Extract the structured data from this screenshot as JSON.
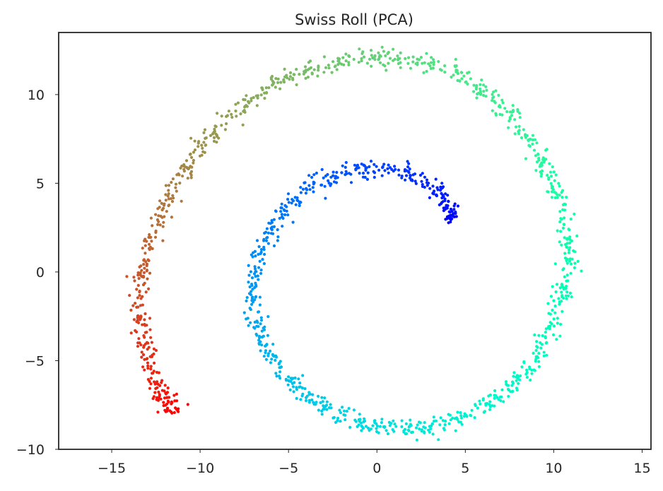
{
  "chart_data": {
    "type": "scatter",
    "title": "Swiss Roll (PCA)",
    "xlabel": "",
    "ylabel": "",
    "xlim": [
      -18,
      15.5
    ],
    "ylim": [
      -10,
      13.5
    ],
    "xticks": [
      -15,
      -10,
      -5,
      0,
      5,
      10,
      15
    ],
    "yticks": [
      -10,
      -5,
      0,
      5,
      10
    ],
    "xtick_labels": [
      "−15",
      "−10",
      "−5",
      "0",
      "5",
      "10",
      "15"
    ],
    "ytick_labels": [
      "−10",
      "−5",
      "0",
      "5",
      "10"
    ],
    "grid": false,
    "legend": "none",
    "colormap": "rainbow",
    "marker_size": 3,
    "spiral_center": [
      -0.5,
      0.0
    ],
    "series": [
      {
        "points": [
          [
            4.2,
            2.9
          ],
          [
            4.2,
            3.4
          ],
          [
            3.6,
            4.2
          ],
          [
            2.8,
            5.0
          ],
          [
            1.7,
            5.6
          ],
          [
            0.2,
            5.85
          ],
          [
            -1.2,
            5.85
          ],
          [
            -2.6,
            5.4
          ],
          [
            -3.9,
            4.8
          ],
          [
            -5.0,
            3.8
          ],
          [
            -5.9,
            2.6
          ],
          [
            -6.6,
            1.3
          ],
          [
            -7.0,
            -0.2
          ],
          [
            -7.0,
            -1.6
          ],
          [
            -6.7,
            -3.1
          ],
          [
            -6.3,
            -4.4
          ],
          [
            -5.4,
            -5.7
          ],
          [
            -4.4,
            -6.6
          ],
          [
            -3.2,
            -7.5
          ],
          [
            -2.0,
            -8.1
          ],
          [
            -0.6,
            -8.5
          ],
          [
            0.8,
            -8.75
          ],
          [
            2.2,
            -8.8
          ],
          [
            3.6,
            -8.6
          ],
          [
            5.0,
            -8.2
          ],
          [
            6.4,
            -7.4
          ],
          [
            7.6,
            -6.5
          ],
          [
            8.6,
            -5.4
          ],
          [
            9.4,
            -4.2
          ],
          [
            10.0,
            -2.8
          ],
          [
            10.5,
            -1.2
          ],
          [
            10.8,
            0.3
          ],
          [
            10.8,
            1.8
          ],
          [
            10.4,
            3.5
          ],
          [
            9.9,
            5.0
          ],
          [
            9.3,
            6.2
          ],
          [
            8.5,
            7.6
          ],
          [
            7.5,
            8.9
          ],
          [
            6.4,
            9.9
          ],
          [
            5.0,
            10.9
          ],
          [
            3.5,
            11.6
          ],
          [
            2.0,
            11.95
          ],
          [
            0.4,
            12.1
          ],
          [
            -1.2,
            12.0
          ],
          [
            -2.8,
            11.6
          ],
          [
            -4.4,
            11.2
          ],
          [
            -5.8,
            10.6
          ],
          [
            -7.2,
            9.6
          ],
          [
            -8.6,
            8.5
          ],
          [
            -9.8,
            7.2
          ],
          [
            -10.8,
            5.9
          ],
          [
            -11.6,
            4.6
          ],
          [
            -12.3,
            3.2
          ],
          [
            -12.8,
            1.6
          ],
          [
            -13.2,
            0.0
          ],
          [
            -13.5,
            -1.4
          ],
          [
            -13.5,
            -2.8
          ],
          [
            -13.1,
            -4.2
          ],
          [
            -12.7,
            -5.6
          ],
          [
            -12.3,
            -6.7
          ],
          [
            -11.8,
            -7.4
          ],
          [
            -11.3,
            -7.9
          ]
        ]
      }
    ]
  }
}
